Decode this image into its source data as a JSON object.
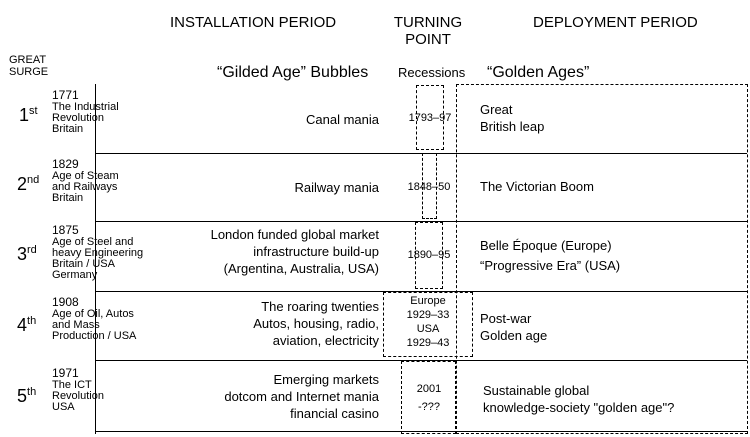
{
  "headers": {
    "installation": "INSTALLATION PERIOD",
    "turning_point": [
      "TURNING",
      "POINT"
    ],
    "deployment": "DEPLOYMENT PERIOD",
    "great_surge": [
      "GREAT",
      "SURGE"
    ],
    "bubbles": "“Gilded Age” Bubbles",
    "recessions": "Recessions",
    "golden_ages": "“Golden Ages”"
  },
  "surges": [
    {
      "ordinal": "1",
      "suffix": "st",
      "year": "1771",
      "name": [
        "The Industrial",
        "Revolution",
        "Britain"
      ],
      "installation": [
        "Canal mania"
      ],
      "turning": [
        "1793–97"
      ],
      "deployment": [
        "Great",
        "British leap"
      ]
    },
    {
      "ordinal": "2",
      "suffix": "nd",
      "year": "1829",
      "name": [
        "Age of Steam",
        "and Railways",
        "Britain"
      ],
      "installation": [
        "Railway mania"
      ],
      "turning": [
        "1848–50"
      ],
      "deployment": [
        "The Victorian  Boom"
      ]
    },
    {
      "ordinal": "3",
      "suffix": "rd",
      "year": "1875",
      "name": [
        "Age of Steel and",
        "heavy Engineering",
        "Britain / USA",
        "Germany"
      ],
      "installation": [
        "London funded global market",
        "infrastructure build-up",
        "(Argentina, Australia, USA)"
      ],
      "turning": [
        "1890–95"
      ],
      "deployment": [
        "Belle Époque (Europe)",
        "“Progressive Era” (USA)"
      ]
    },
    {
      "ordinal": "4",
      "suffix": "th",
      "year": "1908",
      "name": [
        "Age of Oil, Autos",
        "and Mass",
        "Production / USA"
      ],
      "installation": [
        "The roaring twenties",
        "Autos, housing, radio,",
        "aviation, electricity"
      ],
      "turning": [
        "Europe",
        "1929–33",
        "USA",
        "1929–43"
      ],
      "deployment": [
        "Post-war",
        "Golden age"
      ]
    },
    {
      "ordinal": "5",
      "suffix": "th",
      "year": "1971",
      "name": [
        "The ICT",
        "Revolution",
        "USA"
      ],
      "installation": [
        "Emerging markets",
        "dotcom  and Internet mania",
        "financial casino"
      ],
      "turning": [
        "2001",
        "-???"
      ],
      "deployment": [
        "Sustainable global",
        "knowledge-society \"golden age\"?"
      ]
    }
  ]
}
